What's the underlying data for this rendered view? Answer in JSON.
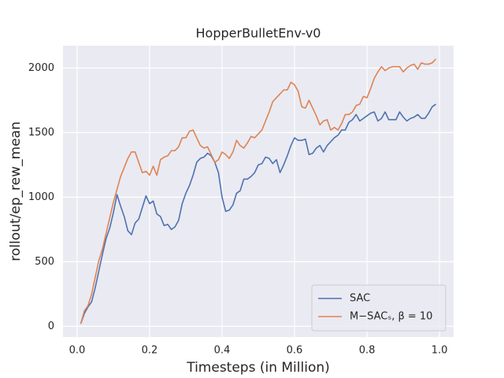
{
  "chart_data": {
    "type": "line",
    "title": "HopperBulletEnv-v0",
    "x_label": "Timesteps (in Million)",
    "y_label": "rollout/ep_rew_mean",
    "x": [
      0.01,
      0.02,
      0.03,
      0.04,
      0.05,
      0.06,
      0.07,
      0.08,
      0.09,
      0.1,
      0.11,
      0.12,
      0.13,
      0.14,
      0.15,
      0.16,
      0.17,
      0.18,
      0.19,
      0.2,
      0.21,
      0.22,
      0.23,
      0.24,
      0.25,
      0.26,
      0.27,
      0.28,
      0.29,
      0.3,
      0.31,
      0.32,
      0.33,
      0.34,
      0.35,
      0.36,
      0.37,
      0.38,
      0.39,
      0.4,
      0.41,
      0.42,
      0.43,
      0.44,
      0.45,
      0.46,
      0.47,
      0.48,
      0.49,
      0.5,
      0.51,
      0.52,
      0.53,
      0.54,
      0.55,
      0.56,
      0.57,
      0.58,
      0.59,
      0.6,
      0.61,
      0.62,
      0.63,
      0.64,
      0.65,
      0.66,
      0.67,
      0.68,
      0.69,
      0.7,
      0.71,
      0.72,
      0.73,
      0.74,
      0.75,
      0.76,
      0.77,
      0.78,
      0.79,
      0.8,
      0.81,
      0.82,
      0.83,
      0.84,
      0.85,
      0.86,
      0.87,
      0.88,
      0.89,
      0.9,
      0.91,
      0.92,
      0.93,
      0.94,
      0.95,
      0.96,
      0.97,
      0.98,
      0.99
    ],
    "series": [
      {
        "name": "SAC",
        "color": "#4c72b0",
        "values": [
          20,
          100,
          150,
          190,
          300,
          430,
          560,
          680,
          760,
          880,
          1020,
          930,
          850,
          740,
          710,
          800,
          830,
          920,
          1010,
          950,
          970,
          870,
          850,
          780,
          790,
          750,
          770,
          820,
          950,
          1030,
          1090,
          1170,
          1270,
          1300,
          1310,
          1340,
          1320,
          1270,
          1190,
          1000,
          890,
          900,
          940,
          1030,
          1050,
          1140,
          1140,
          1160,
          1190,
          1250,
          1260,
          1310,
          1300,
          1260,
          1290,
          1190,
          1250,
          1320,
          1400,
          1460,
          1440,
          1440,
          1450,
          1330,
          1340,
          1380,
          1400,
          1350,
          1400,
          1430,
          1460,
          1480,
          1520,
          1520,
          1580,
          1600,
          1640,
          1590,
          1610,
          1630,
          1650,
          1660,
          1590,
          1610,
          1660,
          1600,
          1600,
          1600,
          1660,
          1620,
          1590,
          1610,
          1620,
          1640,
          1610,
          1610,
          1650,
          1700,
          1720
        ]
      },
      {
        "name": "M−SACₛ, β = 10",
        "color": "#dd8452",
        "values": [
          20,
          120,
          160,
          250,
          380,
          510,
          600,
          720,
          840,
          960,
          1060,
          1160,
          1230,
          1300,
          1350,
          1350,
          1270,
          1190,
          1200,
          1170,
          1240,
          1170,
          1290,
          1310,
          1320,
          1360,
          1360,
          1390,
          1460,
          1460,
          1510,
          1520,
          1460,
          1400,
          1380,
          1390,
          1330,
          1270,
          1290,
          1350,
          1330,
          1300,
          1350,
          1440,
          1400,
          1380,
          1420,
          1470,
          1460,
          1490,
          1520,
          1590,
          1660,
          1740,
          1770,
          1800,
          1830,
          1830,
          1890,
          1870,
          1820,
          1700,
          1690,
          1750,
          1690,
          1630,
          1560,
          1590,
          1600,
          1520,
          1540,
          1520,
          1570,
          1640,
          1640,
          1660,
          1710,
          1720,
          1780,
          1770,
          1840,
          1920,
          1970,
          2010,
          1980,
          2000,
          2010,
          2010,
          2010,
          1970,
          2000,
          2020,
          2030,
          1990,
          2040,
          2030,
          2030,
          2040,
          2070
        ]
      }
    ],
    "xlim": [
      -0.039,
      1.039
    ],
    "ylim": [
      -83,
      2173
    ],
    "xticks": [
      {
        "value": 0,
        "label": "0.0"
      },
      0.2,
      0.4,
      0.6,
      0.8,
      {
        "value": 1,
        "label": "1.0"
      }
    ],
    "yticks": [
      0,
      500,
      1000,
      1500,
      2000
    ],
    "grid": true,
    "legend": "lower right",
    "background": "#eaeaf2"
  }
}
